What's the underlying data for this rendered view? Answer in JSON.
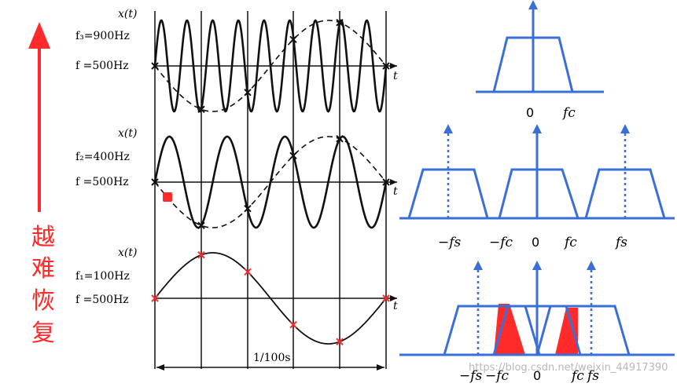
{
  "left_caption": [
    "越",
    "难",
    "恢",
    "复"
  ],
  "panels": [
    {
      "ylabel": "x(t)",
      "signal_label": "f₃=900Hz",
      "sample_label": "f =500Hz",
      "t_label": "t"
    },
    {
      "ylabel": "x(t)",
      "signal_label": "f₂=400Hz",
      "sample_label": "f =500Hz",
      "t_label": "t"
    },
    {
      "ylabel": "x(t)",
      "signal_label": "f₁=100Hz",
      "sample_label": "f =500Hz",
      "t_label": "t"
    }
  ],
  "interval_label": "1/100s",
  "spectra": {
    "top": {
      "zero": "0",
      "fc": "fc"
    },
    "middle": {
      "neg_fs": "−fs",
      "neg_fc": "−fc",
      "zero": "0",
      "fc": "fc",
      "fs": "fs"
    },
    "bottom": {
      "neg_fs": "−fs",
      "neg_fc": "−fc",
      "zero": "0",
      "fc": "fc",
      "fs": "fs"
    }
  },
  "watermark": "https://blog.csdn.net/weixin_44917390",
  "colors": {
    "accent_red": "#ff2a2a",
    "spectrum_blue": "#3a6fd8",
    "line": "#111111"
  }
}
